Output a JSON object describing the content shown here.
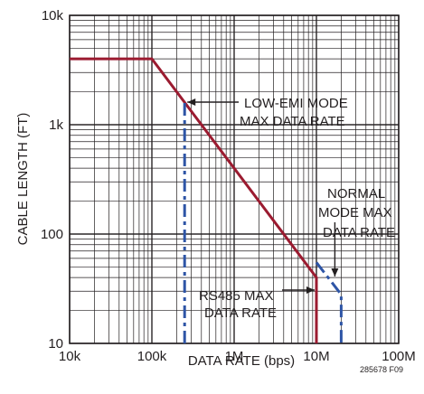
{
  "chart_data": {
    "type": "line",
    "xscale": "log",
    "yscale": "log",
    "xlim": [
      10000,
      100000000
    ],
    "ylim": [
      10,
      10000
    ],
    "grid": true,
    "xlabel": "DATA RATE (bps)",
    "ylabel": "CABLE LENGTH (FT)",
    "x_tick_labels": [
      "10k",
      "100k",
      "1M",
      "10M",
      "100M"
    ],
    "y_tick_labels": [
      "10",
      "100",
      "1k",
      "10k"
    ],
    "colors": {
      "rs485": "#9b1b30",
      "limit": "#2e55a6",
      "grid": "#231f20"
    },
    "series": [
      {
        "name": "RS485 MAX DATA RATE",
        "style": "solid",
        "x": [
          10000,
          100000,
          10000000,
          10000000
        ],
        "y": [
          4000,
          4000,
          40,
          10
        ]
      },
      {
        "name": "LOW-EMI MODE MAX DATA RATE",
        "style": "dashed",
        "x": [
          250000,
          250000
        ],
        "y": [
          10,
          1600
        ]
      },
      {
        "name": "NORMAL MODE MAX DATA RATE",
        "style": "dashed",
        "x": [
          10000000,
          20000000,
          20000000
        ],
        "y": [
          55,
          28,
          10
        ]
      }
    ],
    "annotations": {
      "low_emi": [
        "LOW-EMI MODE",
        "MAX DATA RATE"
      ],
      "normal": [
        "NORMAL",
        "MODE MAX",
        "DATA RATE"
      ],
      "rs485": [
        "RS485 MAX",
        "DATA RATE"
      ]
    },
    "figure_id": "285678 F09"
  }
}
